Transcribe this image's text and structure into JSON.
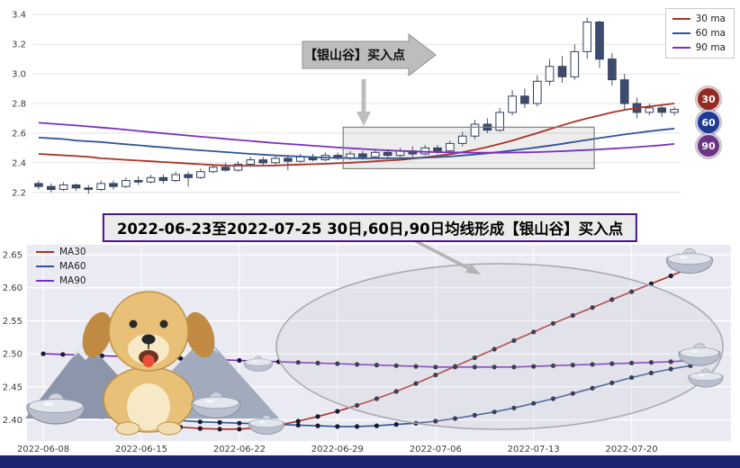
{
  "page": {
    "background": "#ffffff",
    "bottom_bar_color": "#1b2470"
  },
  "banner": {
    "text": "2022-06-23至2022-07-25 30日,60日,90日均线形成【银山谷】买入点",
    "border_color": "#4a148c"
  },
  "top_chart": {
    "badges": [
      {
        "label": "30",
        "color": "#922b21"
      },
      {
        "label": "60",
        "color": "#1f3a93"
      },
      {
        "label": "90",
        "color": "#6c3483"
      }
    ]
  },
  "chart_data": [
    {
      "type": "candlestick",
      "title": "",
      "legend_position": "upper right",
      "ylim": [
        2.15,
        3.45
      ],
      "yticks": [
        "2.2",
        "2.4",
        "2.6",
        "2.8",
        "3.0",
        "3.2",
        "3.4"
      ],
      "grid": true,
      "annotation": {
        "text": "【银山谷】买入点"
      },
      "highlight_box": {
        "start_index": 25,
        "end_index": 44,
        "y_min": 2.36,
        "y_max": 2.64
      },
      "series": [
        {
          "name": "30 ma",
          "color": "#a93226",
          "values": [
            2.46,
            2.455,
            2.45,
            2.445,
            2.44,
            2.43,
            2.425,
            2.42,
            2.415,
            2.41,
            2.405,
            2.4,
            2.395,
            2.39,
            2.385,
            2.382,
            2.38,
            2.38,
            2.38,
            2.382,
            2.385,
            2.388,
            2.39,
            2.393,
            2.397,
            2.4,
            2.405,
            2.41,
            2.415,
            2.42,
            2.428,
            2.437,
            2.447,
            2.458,
            2.472,
            2.488,
            2.506,
            2.527,
            2.55,
            2.575,
            2.6,
            2.627,
            2.653,
            2.678,
            2.7,
            2.72,
            2.74,
            2.757,
            2.77,
            2.78,
            2.79,
            2.8
          ]
        },
        {
          "name": "60 ma",
          "color": "#2f5597",
          "values": [
            2.57,
            2.565,
            2.56,
            2.55,
            2.545,
            2.54,
            2.532,
            2.525,
            2.518,
            2.51,
            2.504,
            2.497,
            2.49,
            2.484,
            2.478,
            2.472,
            2.466,
            2.46,
            2.455,
            2.45,
            2.446,
            2.442,
            2.438,
            2.435,
            2.433,
            2.431,
            2.43,
            2.43,
            2.43,
            2.431,
            2.432,
            2.435,
            2.438,
            2.443,
            2.449,
            2.456,
            2.464,
            2.473,
            2.483,
            2.493,
            2.504,
            2.516,
            2.528,
            2.541,
            2.554,
            2.567,
            2.579,
            2.591,
            2.602,
            2.613,
            2.622,
            2.631
          ]
        },
        {
          "name": "90 ma",
          "color": "#7b2fbe",
          "values": [
            2.67,
            2.664,
            2.658,
            2.652,
            2.645,
            2.638,
            2.631,
            2.623,
            2.615,
            2.607,
            2.599,
            2.591,
            2.584,
            2.576,
            2.569,
            2.561,
            2.554,
            2.547,
            2.54,
            2.533,
            2.527,
            2.521,
            2.515,
            2.509,
            2.503,
            2.498,
            2.493,
            2.488,
            2.484,
            2.48,
            2.477,
            2.474,
            2.472,
            2.47,
            2.469,
            2.468,
            2.468,
            2.468,
            2.469,
            2.47,
            2.472,
            2.475,
            2.478,
            2.482,
            2.486,
            2.49,
            2.495,
            2.5,
            2.506,
            2.512,
            2.519,
            2.527
          ]
        }
      ],
      "candles_format": "[open, high, low, close]",
      "candles": [
        [
          2.26,
          2.28,
          2.22,
          2.24
        ],
        [
          2.24,
          2.26,
          2.2,
          2.22
        ],
        [
          2.22,
          2.27,
          2.21,
          2.25
        ],
        [
          2.25,
          2.26,
          2.21,
          2.23
        ],
        [
          2.23,
          2.25,
          2.19,
          2.22
        ],
        [
          2.22,
          2.28,
          2.21,
          2.26
        ],
        [
          2.26,
          2.28,
          2.22,
          2.24
        ],
        [
          2.24,
          2.3,
          2.23,
          2.28
        ],
        [
          2.28,
          2.31,
          2.25,
          2.27
        ],
        [
          2.27,
          2.32,
          2.26,
          2.3
        ],
        [
          2.3,
          2.32,
          2.26,
          2.28
        ],
        [
          2.28,
          2.34,
          2.27,
          2.32
        ],
        [
          2.32,
          2.34,
          2.24,
          2.3
        ],
        [
          2.3,
          2.36,
          2.29,
          2.34
        ],
        [
          2.34,
          2.39,
          2.33,
          2.37
        ],
        [
          2.37,
          2.4,
          2.34,
          2.35
        ],
        [
          2.35,
          2.41,
          2.34,
          2.39
        ],
        [
          2.39,
          2.44,
          2.38,
          2.42
        ],
        [
          2.42,
          2.44,
          2.38,
          2.4
        ],
        [
          2.4,
          2.45,
          2.39,
          2.43
        ],
        [
          2.43,
          2.45,
          2.35,
          2.41
        ],
        [
          2.41,
          2.46,
          2.4,
          2.44
        ],
        [
          2.44,
          2.46,
          2.41,
          2.42
        ],
        [
          2.42,
          2.47,
          2.41,
          2.45
        ],
        [
          2.45,
          2.47,
          2.42,
          2.43
        ],
        [
          2.43,
          2.48,
          2.42,
          2.46
        ],
        [
          2.46,
          2.48,
          2.42,
          2.44
        ],
        [
          2.44,
          2.49,
          2.43,
          2.47
        ],
        [
          2.47,
          2.49,
          2.43,
          2.45
        ],
        [
          2.45,
          2.5,
          2.44,
          2.48
        ],
        [
          2.48,
          2.51,
          2.44,
          2.46
        ],
        [
          2.46,
          2.52,
          2.45,
          2.5
        ],
        [
          2.5,
          2.52,
          2.46,
          2.48
        ],
        [
          2.48,
          2.55,
          2.47,
          2.53
        ],
        [
          2.53,
          2.61,
          2.51,
          2.58
        ],
        [
          2.58,
          2.69,
          2.56,
          2.66
        ],
        [
          2.66,
          2.7,
          2.6,
          2.62
        ],
        [
          2.62,
          2.77,
          2.61,
          2.74
        ],
        [
          2.74,
          2.89,
          2.72,
          2.85
        ],
        [
          2.85,
          2.9,
          2.77,
          2.8
        ],
        [
          2.8,
          2.99,
          2.78,
          2.95
        ],
        [
          2.95,
          3.1,
          2.92,
          3.05
        ],
        [
          3.05,
          3.12,
          2.94,
          2.98
        ],
        [
          2.98,
          3.2,
          2.96,
          3.15
        ],
        [
          3.15,
          3.38,
          3.1,
          3.35
        ],
        [
          3.35,
          3.36,
          3.04,
          3.1
        ],
        [
          3.1,
          3.14,
          2.92,
          2.96
        ],
        [
          2.96,
          3.0,
          2.76,
          2.8
        ],
        [
          2.8,
          2.84,
          2.7,
          2.74
        ],
        [
          2.74,
          2.8,
          2.72,
          2.77
        ],
        [
          2.77,
          2.79,
          2.71,
          2.74
        ],
        [
          2.74,
          2.78,
          2.72,
          2.76
        ]
      ]
    },
    {
      "type": "line",
      "title": "",
      "legend_position": "upper left",
      "markers": true,
      "grid": true,
      "ylim": [
        2.368,
        2.665
      ],
      "yticks": [
        "2.40",
        "2.45",
        "2.50",
        "2.55",
        "2.60",
        "2.65"
      ],
      "x_tick_labels": [
        "2022-06-08",
        "2022-06-15",
        "2022-06-22",
        "2022-06-29",
        "2022-07-06",
        "2022-07-13",
        "2022-07-20"
      ],
      "x_tick_indices": [
        0,
        5,
        10,
        15,
        20,
        25,
        30
      ],
      "x_dates": [
        "2022-06-08",
        "2022-06-09",
        "2022-06-10",
        "2022-06-13",
        "2022-06-14",
        "2022-06-15",
        "2022-06-16",
        "2022-06-17",
        "2022-06-20",
        "2022-06-21",
        "2022-06-22",
        "2022-06-23",
        "2022-06-24",
        "2022-06-27",
        "2022-06-28",
        "2022-06-29",
        "2022-06-30",
        "2022-07-01",
        "2022-07-04",
        "2022-07-05",
        "2022-07-06",
        "2022-07-07",
        "2022-07-08",
        "2022-07-11",
        "2022-07-12",
        "2022-07-13",
        "2022-07-14",
        "2022-07-15",
        "2022-07-18",
        "2022-07-19",
        "2022-07-20",
        "2022-07-21",
        "2022-07-22",
        "2022-07-25"
      ],
      "series": [
        {
          "name": "MA30",
          "color": "#a93226",
          "values": [
            2.42,
            2.415,
            2.41,
            2.405,
            2.4,
            2.396,
            2.392,
            2.389,
            2.387,
            2.386,
            2.386,
            2.388,
            2.392,
            2.398,
            2.405,
            2.413,
            2.422,
            2.432,
            2.443,
            2.455,
            2.468,
            2.481,
            2.494,
            2.507,
            2.52,
            2.533,
            2.546,
            2.558,
            2.57,
            2.582,
            2.594,
            2.606,
            2.618,
            2.63
          ]
        },
        {
          "name": "MA60",
          "color": "#2f5597",
          "values": [
            2.43,
            2.425,
            2.42,
            2.415,
            2.41,
            2.406,
            2.402,
            2.399,
            2.397,
            2.396,
            2.395,
            2.394,
            2.393,
            2.392,
            2.391,
            2.39,
            2.39,
            2.391,
            2.393,
            2.395,
            2.398,
            2.402,
            2.407,
            2.412,
            2.418,
            2.425,
            2.432,
            2.44,
            2.448,
            2.456,
            2.464,
            2.471,
            2.477,
            2.482
          ]
        },
        {
          "name": "MA90",
          "color": "#7b2fbe",
          "values": [
            2.5,
            2.499,
            2.498,
            2.497,
            2.496,
            2.495,
            2.494,
            2.493,
            2.492,
            2.491,
            2.49,
            2.489,
            2.488,
            2.487,
            2.486,
            2.485,
            2.484,
            2.483,
            2.482,
            2.481,
            2.48,
            2.48,
            2.48,
            2.48,
            2.48,
            2.481,
            2.482,
            2.483,
            2.484,
            2.485,
            2.486,
            2.487,
            2.488,
            2.49
          ]
        }
      ]
    }
  ]
}
